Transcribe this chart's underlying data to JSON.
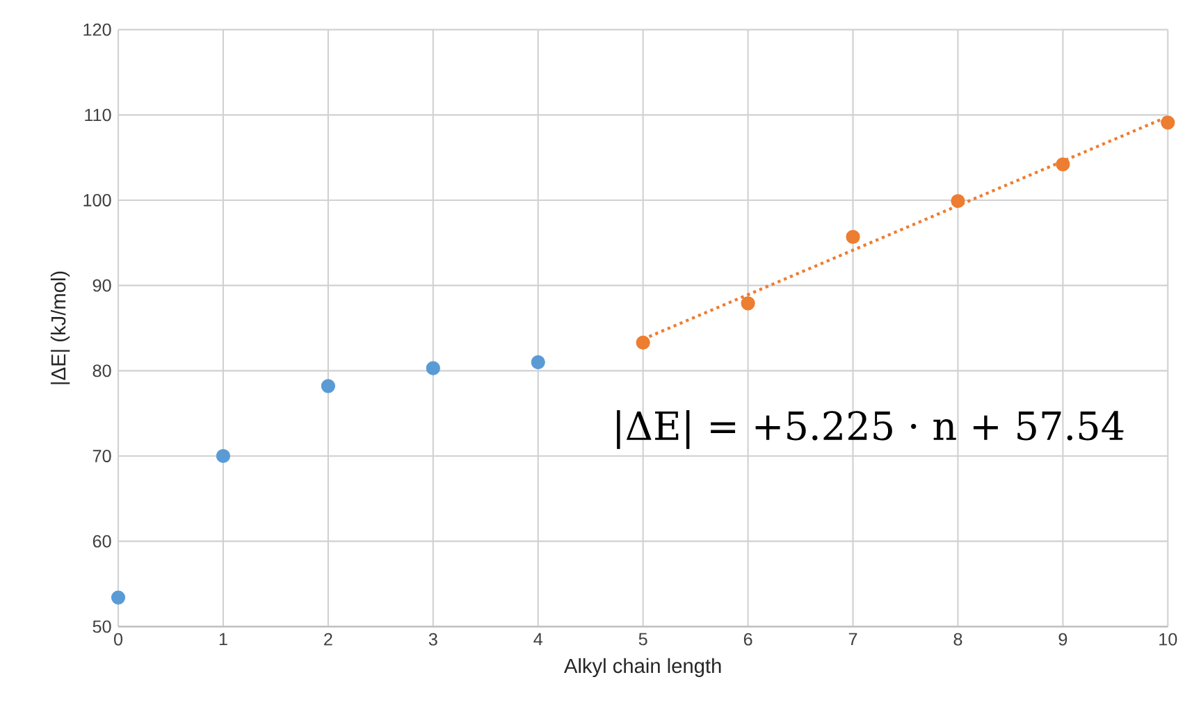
{
  "chart_data": {
    "type": "scatter",
    "xlabel": "Alkyl chain length",
    "ylabel": "|ΔE| (kJ/mol)",
    "xlim": [
      0,
      10
    ],
    "ylim": [
      50,
      120
    ],
    "xticks": [
      0,
      1,
      2,
      3,
      4,
      5,
      6,
      7,
      8,
      9,
      10
    ],
    "yticks": [
      50,
      60,
      70,
      80,
      90,
      100,
      110,
      120
    ],
    "grid": true,
    "marker": "circle",
    "series": [
      {
        "color": "#5b9bd5",
        "x": [
          0,
          1,
          2,
          3,
          4
        ],
        "values": [
          53.4,
          70.0,
          78.2,
          80.3,
          81.0
        ]
      },
      {
        "color": "#ed7d31",
        "x": [
          5,
          6,
          7,
          8,
          9,
          10
        ],
        "values": [
          83.3,
          87.9,
          95.7,
          99.9,
          104.2,
          109.1
        ]
      },
      {
        "type": "line",
        "color": "#ed7d31",
        "marker": "none",
        "line_style": "dotted",
        "x": [
          5,
          10
        ],
        "values": [
          83.7,
          109.8
        ]
      }
    ],
    "annotations": [
      "|ΔE| = +5.225 · n + 57.54"
    ]
  }
}
